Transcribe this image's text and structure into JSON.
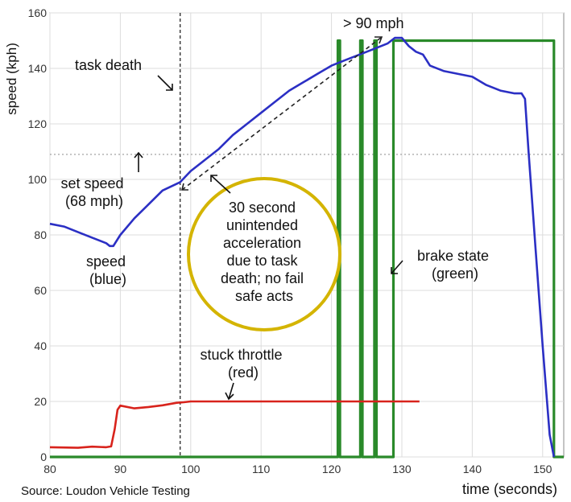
{
  "chart_data": {
    "type": "line",
    "xlabel": "time (seconds)",
    "ylabel": "speed (kph)",
    "xlim": [
      80,
      153
    ],
    "ylim": [
      0,
      160
    ],
    "x_ticks": [
      80,
      90,
      100,
      110,
      120,
      130,
      140,
      150
    ],
    "y_ticks": [
      0,
      20,
      40,
      60,
      80,
      100,
      120,
      140,
      160
    ],
    "grid": true,
    "source": "Source: Loudon Vehicle Testing",
    "reference_lines": {
      "task_death_x": 98.5,
      "set_speed_y": 109
    },
    "series": [
      {
        "color": "#2b2fc4",
        "x": [
          80,
          82,
          84,
          86,
          88,
          88.5,
          89,
          90,
          92,
          94,
          96,
          98.5,
          100,
          102,
          104,
          106,
          108,
          110,
          112,
          114,
          116,
          118,
          120,
          122,
          124,
          126,
          128,
          129,
          130,
          131,
          132,
          133,
          134,
          136,
          138,
          140,
          142,
          144,
          146,
          147,
          147.5,
          148,
          149,
          150,
          151,
          151.6
        ],
        "y": [
          84,
          83,
          81,
          79,
          77,
          76,
          76,
          80,
          86,
          91,
          96,
          99,
          103,
          107,
          111,
          116,
          120,
          124,
          128,
          132,
          135,
          138,
          141,
          143,
          145,
          147,
          149,
          151,
          151,
          148,
          146,
          145,
          141,
          139,
          138,
          137,
          134,
          132,
          131,
          131,
          129,
          110,
          75,
          40,
          8,
          0
        ]
      },
      {
        "color": "#d8231c",
        "x": [
          80,
          84,
          86,
          88,
          88.7,
          89.2,
          89.6,
          90,
          92,
          94,
          96,
          98,
          99,
          100,
          110,
          120,
          130,
          132.5
        ],
        "y": [
          3.5,
          3.3,
          3.7,
          3.5,
          3.8,
          10,
          17,
          18.5,
          17.5,
          18,
          18.6,
          19.5,
          19.7,
          20,
          20,
          20,
          20,
          20
        ]
      },
      {
        "color": "#2a8a2a",
        "step": true,
        "x": [
          80,
          120.9,
          120.9,
          121.2,
          121.2,
          124.1,
          124.1,
          124.4,
          124.4,
          126.1,
          126.1,
          126.4,
          126.4,
          128.8,
          128.8,
          151.6,
          151.6,
          153
        ],
        "y": [
          0,
          0,
          150,
          150,
          0,
          0,
          150,
          150,
          0,
          0,
          150,
          150,
          0,
          0,
          150,
          150,
          0,
          0
        ]
      }
    ],
    "annotations": [
      {
        "text": "task death"
      },
      {
        "text": "> 90 mph"
      },
      {
        "lines": [
          "set speed",
          "(68 mph)"
        ]
      },
      {
        "lines": [
          "speed",
          "(blue)"
        ]
      },
      {
        "lines": [
          "30 second",
          "unintended",
          "acceleration",
          "due to task",
          "death; no fail",
          "safe acts"
        ]
      },
      {
        "lines": [
          "brake state",
          "(green)"
        ]
      },
      {
        "lines": [
          "stuck throttle",
          "(red)"
        ]
      }
    ]
  }
}
